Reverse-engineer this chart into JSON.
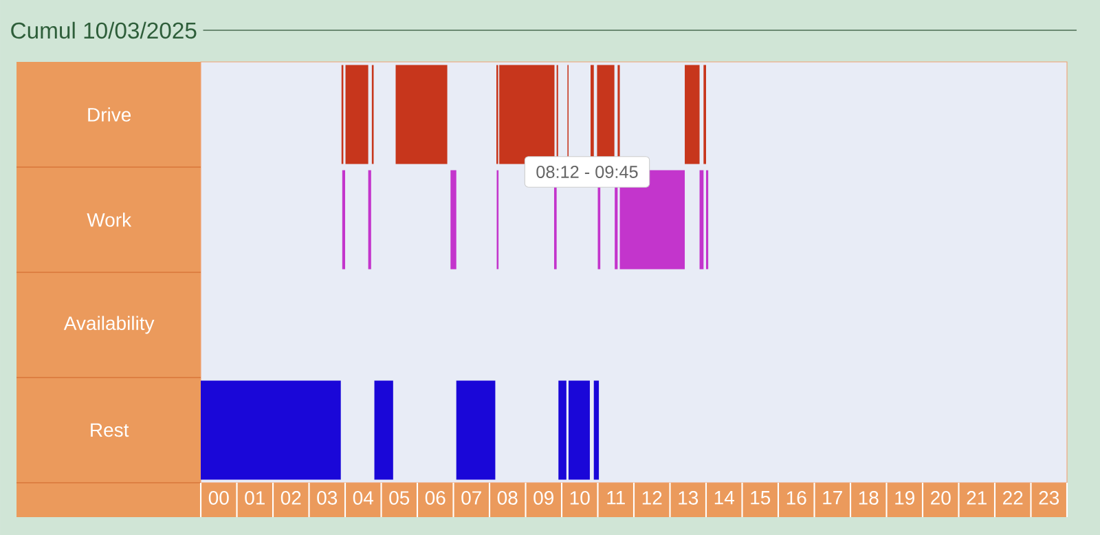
{
  "chart_data": {
    "type": "bar",
    "orientation": "horizontal",
    "title": "Cumul 10/03/2025",
    "annotations": [
      "08:12 - 09:45"
    ],
    "categories": [
      "Drive",
      "Work",
      "Availability",
      "Rest"
    ],
    "xlim": [
      0,
      24
    ],
    "xticks": [
      {
        "value": 0.5,
        "label": "00"
      },
      {
        "value": 1.5,
        "label": "01"
      },
      {
        "value": 2.5,
        "label": "02"
      },
      {
        "value": 3.5,
        "label": "03"
      },
      {
        "value": 4.5,
        "label": "04"
      },
      {
        "value": 5.5,
        "label": "05"
      },
      {
        "value": 6.5,
        "label": "06"
      },
      {
        "value": 7.5,
        "label": "07"
      },
      {
        "value": 8.5,
        "label": "08"
      },
      {
        "value": 9.5,
        "label": "09"
      },
      {
        "value": 10.5,
        "label": "10"
      },
      {
        "value": 11.5,
        "label": "11"
      },
      {
        "value": 12.5,
        "label": "12"
      },
      {
        "value": 13.5,
        "label": "13"
      },
      {
        "value": 14.5,
        "label": "14"
      },
      {
        "value": 15.5,
        "label": "15"
      },
      {
        "value": 16.5,
        "label": "16"
      },
      {
        "value": 17.5,
        "label": "17"
      },
      {
        "value": 18.5,
        "label": "18"
      },
      {
        "value": 19.5,
        "label": "19"
      },
      {
        "value": 20.5,
        "label": "20"
      },
      {
        "value": 21.5,
        "label": "21"
      },
      {
        "value": 22.5,
        "label": "22"
      },
      {
        "value": 23.5,
        "label": "23"
      }
    ],
    "series": [
      {
        "color": "#c7361c",
        "base": [
          3.9,
          null,
          null,
          null
        ],
        "values": [
          0.05,
          null,
          null,
          null
        ]
      },
      {
        "color": "#c7361c",
        "base": [
          4.01,
          null,
          null,
          null
        ],
        "values": [
          0.63,
          null,
          null,
          null
        ]
      },
      {
        "color": "#c7361c",
        "base": [
          4.74,
          null,
          null,
          null
        ],
        "values": [
          0.05,
          null,
          null,
          null
        ]
      },
      {
        "color": "#c7361c",
        "base": [
          5.4,
          null,
          null,
          null
        ],
        "values": [
          1.43,
          null,
          null,
          null
        ]
      },
      {
        "color": "#c7361c",
        "base": [
          8.19,
          null,
          null,
          null
        ],
        "values": [
          0.05,
          null,
          null,
          null
        ]
      },
      {
        "color": "#c7361c",
        "base": [
          8.27,
          null,
          null,
          null
        ],
        "values": [
          1.53,
          null,
          null,
          null
        ]
      },
      {
        "color": "#c7361c",
        "base": [
          9.86,
          null,
          null,
          null
        ],
        "values": [
          0.04,
          null,
          null,
          null
        ]
      },
      {
        "color": "#c7361c",
        "base": [
          10.16,
          null,
          null,
          null
        ],
        "values": [
          0.03,
          null,
          null,
          null
        ]
      },
      {
        "color": "#c7361c",
        "base": [
          10.8,
          null,
          null,
          null
        ],
        "values": [
          0.09,
          null,
          null,
          null
        ]
      },
      {
        "color": "#c7361c",
        "base": [
          10.98,
          null,
          null,
          null
        ],
        "values": [
          0.48,
          null,
          null,
          null
        ]
      },
      {
        "color": "#c7361c",
        "base": [
          11.55,
          null,
          null,
          null
        ],
        "values": [
          0.06,
          null,
          null,
          null
        ]
      },
      {
        "color": "#c7361c",
        "base": [
          13.41,
          null,
          null,
          null
        ],
        "values": [
          0.41,
          null,
          null,
          null
        ]
      },
      {
        "color": "#c7361c",
        "base": [
          13.93,
          null,
          null,
          null
        ],
        "values": [
          0.07,
          null,
          null,
          null
        ]
      },
      {
        "color": "#c335cc",
        "base": [
          null,
          3.92,
          null,
          null
        ],
        "values": [
          null,
          0.08,
          null,
          null
        ]
      },
      {
        "color": "#c335cc",
        "base": [
          null,
          4.64,
          null,
          null
        ],
        "values": [
          null,
          0.08,
          null,
          null
        ]
      },
      {
        "color": "#c335cc",
        "base": [
          null,
          6.92,
          null,
          null
        ],
        "values": [
          null,
          0.16,
          null,
          null
        ]
      },
      {
        "color": "#c335cc",
        "base": [
          null,
          8.2,
          null,
          null
        ],
        "values": [
          null,
          0.05,
          null,
          null
        ]
      },
      {
        "color": "#c335cc",
        "base": [
          null,
          9.79,
          null,
          null
        ],
        "values": [
          null,
          0.07,
          null,
          null
        ]
      },
      {
        "color": "#c335cc",
        "base": [
          null,
          11.0,
          null,
          null
        ],
        "values": [
          null,
          0.07,
          null,
          null
        ]
      },
      {
        "color": "#c335cc",
        "base": [
          null,
          11.47,
          null,
          null
        ],
        "values": [
          null,
          0.08,
          null,
          null
        ]
      },
      {
        "color": "#c335cc",
        "base": [
          null,
          11.61,
          null,
          null
        ],
        "values": [
          null,
          1.8,
          null,
          null
        ]
      },
      {
        "color": "#c335cc",
        "base": [
          null,
          13.82,
          null,
          null
        ],
        "values": [
          null,
          0.11,
          null,
          null
        ]
      },
      {
        "color": "#c335cc",
        "base": [
          null,
          14.0,
          null,
          null
        ],
        "values": [
          null,
          0.06,
          null,
          null
        ]
      },
      {
        "color": "#1a07d8",
        "base": [
          null,
          null,
          null,
          0
        ],
        "values": [
          null,
          null,
          null,
          3.88
        ]
      },
      {
        "color": "#1a07d8",
        "base": [
          null,
          null,
          null,
          4.81
        ],
        "values": [
          null,
          null,
          null,
          0.52
        ]
      },
      {
        "color": "#1a07d8",
        "base": [
          null,
          null,
          null,
          7.08
        ],
        "values": [
          null,
          null,
          null,
          1.08
        ]
      },
      {
        "color": "#1a07d8",
        "base": [
          null,
          null,
          null,
          9.91
        ],
        "values": [
          null,
          null,
          null,
          0.22
        ]
      },
      {
        "color": "#1a07d8",
        "base": [
          null,
          null,
          null,
          10.19
        ],
        "values": [
          null,
          null,
          null,
          0.59
        ]
      },
      {
        "color": "#1a07d8",
        "base": [
          null,
          null,
          null,
          10.89
        ],
        "values": [
          null,
          null,
          null,
          0.14
        ]
      }
    ]
  }
}
